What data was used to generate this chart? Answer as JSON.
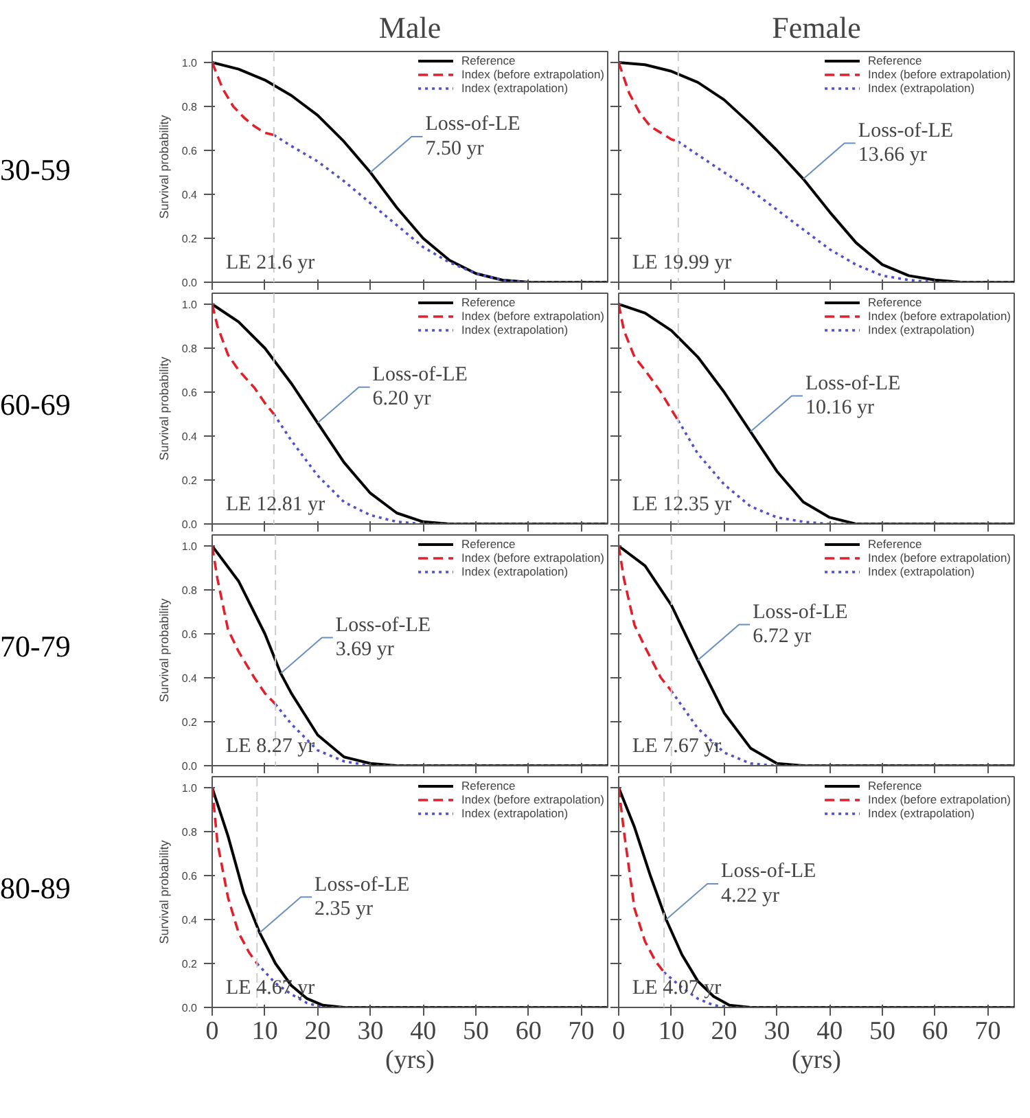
{
  "chart_data": [
    {
      "type": "line",
      "title": "Male",
      "subtitle": "30-59",
      "ylabel": "Survival probability",
      "xlim": [
        0,
        75
      ],
      "ylim": [
        0,
        1.05
      ],
      "xticks": [
        0,
        10,
        20,
        30,
        40,
        50,
        60,
        70
      ],
      "yticks": [
        {
          "value": 0,
          "label": "0.0"
        },
        {
          "value": 0.2,
          "label": "0.2"
        },
        {
          "value": 0.4,
          "label": "0.4"
        },
        {
          "value": 0.6,
          "label": "0.6"
        },
        {
          "value": 0.8,
          "label": "0.8"
        },
        {
          "value": 1,
          "label": "1.0"
        }
      ],
      "tick_labels": "y",
      "legend": "top right",
      "series": [
        {
          "name": "Reference",
          "color": "#000000",
          "line_style": "solid",
          "x": [
            0,
            5,
            10,
            15,
            20,
            25,
            30,
            35,
            40,
            45,
            50,
            55,
            60,
            75
          ],
          "values": [
            1,
            0.97,
            0.92,
            0.85,
            0.76,
            0.64,
            0.5,
            0.34,
            0.2,
            0.1,
            0.04,
            0.01,
            0,
            0
          ]
        },
        {
          "name": "Index (before extrapolation)",
          "color": "#e0202a",
          "line_style": "dashed",
          "x": [
            0,
            2,
            4,
            6,
            8,
            10,
            11.7
          ],
          "values": [
            1,
            0.88,
            0.8,
            0.75,
            0.71,
            0.68,
            0.67
          ]
        },
        {
          "name": "Index (extrapolation)",
          "color": "#5050c8",
          "line_style": "dotted",
          "x": [
            11.7,
            15,
            20,
            25,
            30,
            35,
            40,
            45,
            50,
            55,
            60,
            75
          ],
          "values": [
            0.67,
            0.62,
            0.55,
            0.46,
            0.36,
            0.26,
            0.16,
            0.09,
            0.04,
            0.01,
            0,
            0
          ]
        }
      ],
      "ref_lines": [
        {
          "axis": "x",
          "value": 11.7,
          "color": "#cccccc",
          "line_style": "dashed"
        }
      ],
      "annotations": [
        {
          "text": "Loss-of-LE\n7.50 yr",
          "x": 30,
          "y": 0.5
        },
        "LE 21.6 yr"
      ]
    },
    {
      "type": "line",
      "title": "Female",
      "xlim": [
        0,
        75
      ],
      "ylim": [
        0,
        1.05
      ],
      "xticks": [
        0,
        10,
        20,
        30,
        40,
        50,
        60,
        70
      ],
      "yticks": [
        0,
        0.2,
        0.4,
        0.6,
        0.8,
        1
      ],
      "tick_labels": false,
      "legend": "top right",
      "series": [
        {
          "name": "Reference",
          "color": "#000000",
          "line_style": "solid",
          "x": [
            0,
            5,
            10,
            15,
            20,
            25,
            30,
            35,
            40,
            45,
            50,
            55,
            60,
            65,
            75
          ],
          "values": [
            1,
            0.99,
            0.96,
            0.91,
            0.83,
            0.72,
            0.6,
            0.47,
            0.32,
            0.18,
            0.08,
            0.03,
            0.01,
            0,
            0
          ]
        },
        {
          "name": "Index (before extrapolation)",
          "color": "#e0202a",
          "line_style": "dashed",
          "x": [
            0,
            2,
            4,
            6,
            8,
            10,
            11.3
          ],
          "values": [
            1,
            0.86,
            0.77,
            0.71,
            0.68,
            0.65,
            0.64
          ]
        },
        {
          "name": "Index (extrapolation)",
          "color": "#5050c8",
          "line_style": "dotted",
          "x": [
            11.3,
            15,
            20,
            25,
            30,
            35,
            40,
            45,
            50,
            55,
            60,
            75
          ],
          "values": [
            0.64,
            0.58,
            0.5,
            0.42,
            0.33,
            0.24,
            0.15,
            0.08,
            0.03,
            0.01,
            0,
            0
          ]
        }
      ],
      "ref_lines": [
        {
          "axis": "x",
          "value": 11.3,
          "color": "#cccccc",
          "line_style": "dashed"
        }
      ],
      "annotations": [
        {
          "text": "Loss-of-LE\n13.66 yr",
          "x": 35,
          "y": 0.47
        },
        "LE 19.99 yr"
      ]
    },
    {
      "type": "line",
      "subtitle": "60-69",
      "ylabel": "Survival probability",
      "xlim": [
        0,
        75
      ],
      "ylim": [
        0,
        1.05
      ],
      "xticks": [
        0,
        10,
        20,
        30,
        40,
        50,
        60,
        70
      ],
      "yticks": [
        {
          "value": 0,
          "label": "0.0"
        },
        {
          "value": 0.2,
          "label": "0.2"
        },
        {
          "value": 0.4,
          "label": "0.4"
        },
        {
          "value": 0.6,
          "label": "0.6"
        },
        {
          "value": 0.8,
          "label": "0.8"
        },
        {
          "value": 1,
          "label": "1.0"
        }
      ],
      "tick_labels": "y",
      "legend": "top right",
      "series": [
        {
          "name": "Reference",
          "color": "#000000",
          "line_style": "solid",
          "x": [
            0,
            5,
            10,
            15,
            20,
            25,
            30,
            35,
            40,
            45,
            75
          ],
          "values": [
            1,
            0.92,
            0.8,
            0.64,
            0.46,
            0.28,
            0.14,
            0.05,
            0.01,
            0,
            0
          ]
        },
        {
          "name": "Index (before extrapolation)",
          "color": "#e0202a",
          "line_style": "dashed",
          "x": [
            0,
            1,
            3,
            5,
            8,
            10,
            11.7
          ],
          "values": [
            1,
            0.9,
            0.77,
            0.7,
            0.62,
            0.55,
            0.5
          ]
        },
        {
          "name": "Index (extrapolation)",
          "color": "#5050c8",
          "line_style": "dotted",
          "x": [
            11.7,
            15,
            20,
            25,
            30,
            35,
            40,
            75
          ],
          "values": [
            0.5,
            0.38,
            0.22,
            0.1,
            0.04,
            0.01,
            0,
            0
          ]
        }
      ],
      "ref_lines": [
        {
          "axis": "x",
          "value": 11.7,
          "color": "#cccccc",
          "line_style": "dashed"
        }
      ],
      "annotations": [
        {
          "text": "Loss-of-LE\n6.20 yr",
          "x": 20,
          "y": 0.46
        },
        "LE 12.81 yr"
      ]
    },
    {
      "type": "line",
      "xlim": [
        0,
        75
      ],
      "ylim": [
        0,
        1.05
      ],
      "xticks": [
        0,
        10,
        20,
        30,
        40,
        50,
        60,
        70
      ],
      "yticks": [
        0,
        0.2,
        0.4,
        0.6,
        0.8,
        1
      ],
      "tick_labels": false,
      "legend": "top right",
      "series": [
        {
          "name": "Reference",
          "color": "#000000",
          "line_style": "solid",
          "x": [
            0,
            5,
            10,
            15,
            20,
            25,
            30,
            35,
            40,
            45,
            75
          ],
          "values": [
            1,
            0.96,
            0.88,
            0.76,
            0.6,
            0.42,
            0.24,
            0.1,
            0.03,
            0,
            0
          ]
        },
        {
          "name": "Index (before extrapolation)",
          "color": "#e0202a",
          "line_style": "dashed",
          "x": [
            0,
            1,
            3,
            5,
            8,
            10,
            11.3
          ],
          "values": [
            1,
            0.88,
            0.76,
            0.7,
            0.6,
            0.52,
            0.47
          ]
        },
        {
          "name": "Index (extrapolation)",
          "color": "#5050c8",
          "line_style": "dotted",
          "x": [
            11.3,
            15,
            20,
            25,
            30,
            35,
            40,
            75
          ],
          "values": [
            0.47,
            0.32,
            0.18,
            0.08,
            0.03,
            0.01,
            0,
            0
          ]
        }
      ],
      "ref_lines": [
        {
          "axis": "x",
          "value": 11.3,
          "color": "#cccccc",
          "line_style": "dashed"
        }
      ],
      "annotations": [
        {
          "text": "Loss-of-LE\n10.16 yr",
          "x": 25,
          "y": 0.42
        },
        "LE 12.35 yr"
      ]
    },
    {
      "type": "line",
      "subtitle": "70-79",
      "ylabel": "Survival probability",
      "xlim": [
        0,
        75
      ],
      "ylim": [
        0,
        1.05
      ],
      "xticks": [
        0,
        10,
        20,
        30,
        40,
        50,
        60,
        70
      ],
      "yticks": [
        {
          "value": 0,
          "label": "0.0"
        },
        {
          "value": 0.2,
          "label": "0.2"
        },
        {
          "value": 0.4,
          "label": "0.4"
        },
        {
          "value": 0.6,
          "label": "0.6"
        },
        {
          "value": 0.8,
          "label": "0.8"
        },
        {
          "value": 1,
          "label": "1.0"
        }
      ],
      "tick_labels": "y",
      "legend": "top right",
      "series": [
        {
          "name": "Reference",
          "color": "#000000",
          "line_style": "solid",
          "x": [
            0,
            5,
            10,
            13,
            15,
            20,
            25,
            30,
            35,
            75
          ],
          "values": [
            1,
            0.84,
            0.6,
            0.42,
            0.33,
            0.14,
            0.04,
            0.01,
            0,
            0
          ]
        },
        {
          "name": "Index (before extrapolation)",
          "color": "#e0202a",
          "line_style": "dashed",
          "x": [
            0,
            1,
            3,
            5,
            8,
            10,
            12
          ],
          "values": [
            1,
            0.85,
            0.62,
            0.52,
            0.4,
            0.33,
            0.28
          ]
        },
        {
          "name": "Index (extrapolation)",
          "color": "#5050c8",
          "line_style": "dotted",
          "x": [
            12,
            15,
            20,
            25,
            30,
            75
          ],
          "values": [
            0.28,
            0.19,
            0.07,
            0.02,
            0,
            0
          ]
        }
      ],
      "ref_lines": [
        {
          "axis": "x",
          "value": 12,
          "color": "#cccccc",
          "line_style": "dashed"
        }
      ],
      "annotations": [
        {
          "text": "Loss-of-LE\n3.69 yr",
          "x": 13,
          "y": 0.42
        },
        "LE 8.27 yr"
      ]
    },
    {
      "type": "line",
      "xlim": [
        0,
        75
      ],
      "ylim": [
        0,
        1.05
      ],
      "xticks": [
        0,
        10,
        20,
        30,
        40,
        50,
        60,
        70
      ],
      "yticks": [
        0,
        0.2,
        0.4,
        0.6,
        0.8,
        1
      ],
      "tick_labels": false,
      "legend": "top right",
      "series": [
        {
          "name": "Reference",
          "color": "#000000",
          "line_style": "solid",
          "x": [
            0,
            5,
            10,
            15,
            20,
            25,
            30,
            35,
            75
          ],
          "values": [
            1,
            0.91,
            0.73,
            0.48,
            0.24,
            0.08,
            0.01,
            0,
            0
          ]
        },
        {
          "name": "Index (before extrapolation)",
          "color": "#e0202a",
          "line_style": "dashed",
          "x": [
            0,
            1,
            3,
            5,
            8,
            10
          ],
          "values": [
            1,
            0.85,
            0.64,
            0.54,
            0.4,
            0.34
          ]
        },
        {
          "name": "Index (extrapolation)",
          "color": "#5050c8",
          "line_style": "dotted",
          "x": [
            10,
            15,
            20,
            25,
            30,
            75
          ],
          "values": [
            0.34,
            0.17,
            0.06,
            0.01,
            0,
            0
          ]
        }
      ],
      "ref_lines": [
        {
          "axis": "x",
          "value": 10,
          "color": "#cccccc",
          "line_style": "dashed"
        }
      ],
      "annotations": [
        {
          "text": "Loss-of-LE\n6.72 yr",
          "x": 15,
          "y": 0.48
        },
        "LE 7.67 yr"
      ]
    },
    {
      "type": "line",
      "subtitle": "80-89",
      "ylabel": "Survival probability",
      "xlabel": "(yrs)",
      "xlim": [
        0,
        75
      ],
      "ylim": [
        0,
        1.05
      ],
      "xticks": [
        0,
        10,
        20,
        30,
        40,
        50,
        60,
        70
      ],
      "yticks": [
        {
          "value": 0,
          "label": "0.0"
        },
        {
          "value": 0.2,
          "label": "0.2"
        },
        {
          "value": 0.4,
          "label": "0.4"
        },
        {
          "value": 0.6,
          "label": "0.6"
        },
        {
          "value": 0.8,
          "label": "0.8"
        },
        {
          "value": 1,
          "label": "1.0"
        }
      ],
      "legend": "top right",
      "series": [
        {
          "name": "Reference",
          "color": "#000000",
          "line_style": "solid",
          "x": [
            0,
            3,
            6,
            9,
            12,
            15,
            18,
            21,
            25,
            75
          ],
          "values": [
            1,
            0.78,
            0.52,
            0.34,
            0.2,
            0.1,
            0.04,
            0.01,
            0,
            0
          ]
        },
        {
          "name": "Index (before extrapolation)",
          "color": "#e0202a",
          "line_style": "dashed",
          "x": [
            0,
            1,
            3,
            5,
            7,
            8.5
          ],
          "values": [
            1,
            0.75,
            0.5,
            0.34,
            0.25,
            0.2
          ]
        },
        {
          "name": "Index (extrapolation)",
          "color": "#5050c8",
          "line_style": "dotted",
          "x": [
            8.5,
            12,
            15,
            18,
            21,
            75
          ],
          "values": [
            0.2,
            0.11,
            0.06,
            0.02,
            0,
            0
          ]
        }
      ],
      "ref_lines": [
        {
          "axis": "x",
          "value": 8.5,
          "color": "#cccccc",
          "line_style": "dashed"
        }
      ],
      "annotations": [
        {
          "text": "Loss-of-LE\n2.35 yr",
          "x": 9,
          "y": 0.34
        },
        "LE 4.67 yr"
      ]
    },
    {
      "type": "line",
      "xlabel": "(yrs)",
      "xlim": [
        0,
        75
      ],
      "ylim": [
        0,
        1.05
      ],
      "xticks": [
        0,
        10,
        20,
        30,
        40,
        50,
        60,
        70
      ],
      "yticks": [
        0,
        0.2,
        0.4,
        0.6,
        0.8,
        1
      ],
      "tick_labels": "x",
      "legend": "top right",
      "series": [
        {
          "name": "Reference",
          "color": "#000000",
          "line_style": "solid",
          "x": [
            0,
            3,
            6,
            9,
            12,
            15,
            18,
            21,
            25,
            75
          ],
          "values": [
            1,
            0.82,
            0.6,
            0.4,
            0.24,
            0.12,
            0.05,
            0.01,
            0,
            0
          ]
        },
        {
          "name": "Index (before extrapolation)",
          "color": "#e0202a",
          "line_style": "dashed",
          "x": [
            0,
            1,
            3,
            5,
            7,
            8.6
          ],
          "values": [
            1,
            0.8,
            0.45,
            0.3,
            0.21,
            0.16
          ]
        },
        {
          "name": "Index (extrapolation)",
          "color": "#5050c8",
          "line_style": "dotted",
          "x": [
            8.6,
            12,
            15,
            18,
            21,
            75
          ],
          "values": [
            0.16,
            0.09,
            0.04,
            0.01,
            0,
            0
          ]
        }
      ],
      "ref_lines": [
        {
          "axis": "x",
          "value": 8.6,
          "color": "#cccccc",
          "line_style": "dashed"
        }
      ],
      "annotations": [
        {
          "text": "Loss-of-LE\n4.22 yr",
          "x": 9,
          "y": 0.4
        },
        "LE 4.07 yr"
      ]
    }
  ]
}
